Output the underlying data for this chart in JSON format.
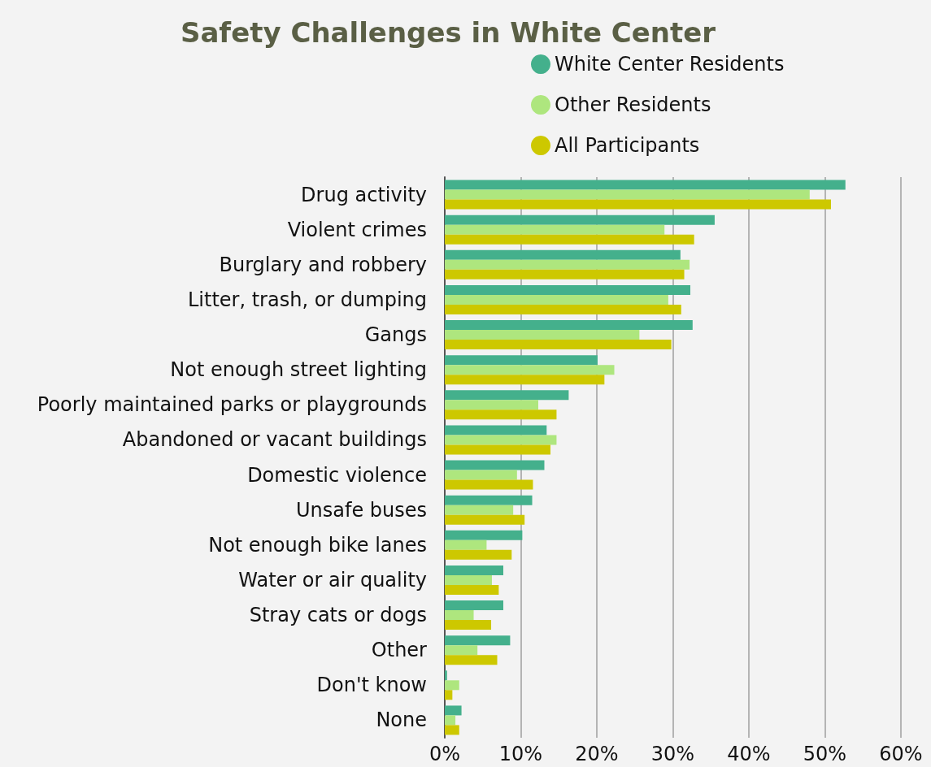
{
  "chart_data": {
    "type": "bar",
    "orientation": "horizontal",
    "title": "Safety Challenges in White Center",
    "categories": [
      "Drug activity",
      "Violent crimes",
      "Burglary and robbery",
      "Litter, trash, or dumping",
      "Gangs",
      "Not enough street lighting",
      "Poorly maintained parks or playgrounds",
      "Abandoned or vacant buildings",
      "Domestic violence",
      "Unsafe buses",
      "Not enough bike lanes",
      "Water or air quality",
      "Stray cats or dogs",
      "Other",
      "Don't know",
      "None"
    ],
    "series": [
      {
        "name": "White Center Residents",
        "color": "#44b08c",
        "values": [
          52.7,
          35.5,
          31.0,
          32.3,
          32.6,
          20.1,
          16.3,
          13.4,
          13.1,
          11.5,
          10.2,
          7.7,
          7.7,
          8.6,
          0.3,
          2.2
        ]
      },
      {
        "name": "Other Residents",
        "color": "#aee67e",
        "values": [
          48.0,
          28.9,
          32.2,
          29.4,
          25.6,
          22.3,
          12.3,
          14.7,
          9.5,
          9.0,
          5.5,
          6.2,
          3.8,
          4.3,
          1.9,
          1.4
        ]
      },
      {
        "name": "All Participants",
        "color": "#cdc800",
        "values": [
          50.8,
          32.8,
          31.5,
          31.1,
          29.8,
          21.0,
          14.7,
          13.9,
          11.6,
          10.5,
          8.8,
          7.1,
          6.1,
          6.9,
          1.0,
          1.9
        ]
      }
    ],
    "xlim": [
      0,
      60
    ],
    "xticks": [
      {
        "value": 0,
        "label": "0%"
      },
      {
        "value": 10,
        "label": "10%"
      },
      {
        "value": 20,
        "label": "20%"
      },
      {
        "value": 30,
        "label": "30%"
      },
      {
        "value": 40,
        "label": "40%"
      },
      {
        "value": 50,
        "label": "50%"
      },
      {
        "value": 60,
        "label": "60%"
      }
    ],
    "grid": "x",
    "legend": "top"
  }
}
